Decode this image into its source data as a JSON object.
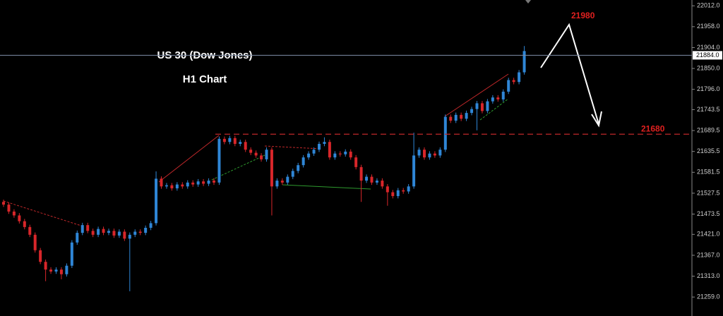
{
  "chart_data": {
    "type": "candlestick",
    "title": "US 30 (Dow Jones)",
    "subtitle": "H1 Chart",
    "up_color": "#2f86d6",
    "down_color": "#d8262a",
    "open": [
      21505,
      21498,
      21480,
      21470,
      21455,
      21440,
      21420,
      21380,
      21350,
      21330,
      21325,
      21330,
      21318,
      21340,
      21400,
      21425,
      21445,
      21430,
      21420,
      21435,
      21425,
      21430,
      21418,
      21428,
      21410,
      21420,
      21428,
      21425,
      21438,
      21450,
      21565,
      21545,
      21548,
      21540,
      21550,
      21545,
      21555,
      21550,
      21558,
      21552,
      21560,
      21555,
      21668,
      21660,
      21670,
      21655,
      21660,
      21640,
      21632,
      21625,
      21615,
      21640,
      21545,
      21560,
      21555,
      21570,
      21585,
      21600,
      21620,
      21630,
      21640,
      21655,
      21660,
      21620,
      21630,
      21628,
      21635,
      21620,
      21595,
      21560,
      21570,
      21555,
      21560,
      21545,
      21530,
      21520,
      21535,
      21532,
      21545,
      21625,
      21640,
      21620,
      21630,
      21625,
      21640,
      21725,
      21715,
      21730,
      21720,
      21735,
      21745,
      21760,
      21740,
      21765,
      21775,
      21770,
      21790,
      21820,
      21815,
      21840
    ],
    "high": [
      21511,
      21504,
      21486,
      21476,
      21461,
      21446,
      21426,
      21386,
      21356,
      21336,
      21336,
      21336,
      21346,
      21406,
      21431,
      21451,
      21451,
      21436,
      21441,
      21441,
      21436,
      21436,
      21434,
      21434,
      21426,
      21434,
      21434,
      21444,
      21456,
      21584,
      21571,
      21554,
      21554,
      21556,
      21556,
      21561,
      21561,
      21564,
      21564,
      21566,
      21566,
      21674,
      21674,
      21676,
      21676,
      21666,
      21666,
      21646,
      21638,
      21631,
      21646,
      21646,
      21566,
      21566,
      21576,
      21591,
      21606,
      21626,
      21636,
      21646,
      21661,
      21672,
      21666,
      21636,
      21636,
      21641,
      21641,
      21626,
      21601,
      21576,
      21576,
      21566,
      21566,
      21551,
      21536,
      21541,
      21541,
      21551,
      21684,
      21646,
      21646,
      21636,
      21636,
      21646,
      21731,
      21731,
      21736,
      21736,
      21741,
      21751,
      21766,
      21766,
      21771,
      21781,
      21781,
      21796,
      21826,
      21826,
      21846,
      21908
    ],
    "low": [
      21492,
      21474,
      21464,
      21449,
      21434,
      21414,
      21374,
      21344,
      21300,
      21319,
      21319,
      21305,
      21312,
      21334,
      21394,
      21419,
      21424,
      21414,
      21414,
      21419,
      21419,
      21412,
      21412,
      21404,
      21274,
      21414,
      21419,
      21419,
      21432,
      21444,
      21539,
      21539,
      21534,
      21534,
      21539,
      21539,
      21544,
      21544,
      21546,
      21546,
      21549,
      21549,
      21654,
      21654,
      21649,
      21649,
      21634,
      21626,
      21619,
      21609,
      21609,
      21470,
      21539,
      21549,
      21549,
      21564,
      21579,
      21594,
      21614,
      21624,
      21634,
      21649,
      21614,
      21614,
      21622,
      21622,
      21614,
      21589,
      21505,
      21554,
      21549,
      21549,
      21539,
      21495,
      21514,
      21514,
      21526,
      21526,
      21539,
      21619,
      21614,
      21614,
      21619,
      21619,
      21634,
      21709,
      21709,
      21714,
      21714,
      21729,
      21690,
      21734,
      21734,
      21759,
      21764,
      21764,
      21784,
      21809,
      21809,
      21834
    ],
    "close": [
      21498,
      21480,
      21470,
      21455,
      21440,
      21420,
      21380,
      21350,
      21330,
      21325,
      21330,
      21318,
      21340,
      21400,
      21425,
      21445,
      21430,
      21420,
      21435,
      21425,
      21430,
      21418,
      21428,
      21410,
      21420,
      21428,
      21425,
      21438,
      21450,
      21565,
      21545,
      21548,
      21540,
      21550,
      21545,
      21555,
      21550,
      21558,
      21552,
      21560,
      21555,
      21668,
      21660,
      21670,
      21655,
      21660,
      21640,
      21632,
      21625,
      21615,
      21640,
      21545,
      21560,
      21555,
      21570,
      21585,
      21600,
      21620,
      21630,
      21640,
      21655,
      21660,
      21620,
      21630,
      21628,
      21635,
      21620,
      21595,
      21560,
      21570,
      21555,
      21560,
      21545,
      21530,
      21520,
      21535,
      21532,
      21545,
      21625,
      21640,
      21620,
      21630,
      21625,
      21640,
      21725,
      21715,
      21730,
      21720,
      21735,
      21745,
      21760,
      21740,
      21765,
      21775,
      21770,
      21790,
      21820,
      21815,
      21840,
      21895
    ],
    "ylim": [
      21210,
      22027
    ],
    "yticks": [
      {
        "value": 22012,
        "label": "22012.0"
      },
      {
        "value": 21958,
        "label": "21958.0"
      },
      {
        "value": 21904,
        "label": "21904.0"
      },
      {
        "value": 21850,
        "label": "21850.0"
      },
      {
        "value": 21796,
        "label": "21796.0"
      },
      {
        "value": 21743.5,
        "label": "21743.5"
      },
      {
        "value": 21689.5,
        "label": "21689.5"
      },
      {
        "value": 21635.5,
        "label": "21635.5"
      },
      {
        "value": 21581.5,
        "label": "21581.5"
      },
      {
        "value": 21527.5,
        "label": "21527.5"
      },
      {
        "value": 21473.5,
        "label": "21473.5"
      },
      {
        "value": 21421,
        "label": "21421.0"
      },
      {
        "value": 21367,
        "label": "21367.0"
      },
      {
        "value": 21313,
        "label": "21313.0"
      },
      {
        "value": 21259,
        "label": "21259.0"
      }
    ],
    "current_price": {
      "value": 21884,
      "label": "21884.0"
    },
    "support_level": 21680,
    "target_level": 21980
  }
}
